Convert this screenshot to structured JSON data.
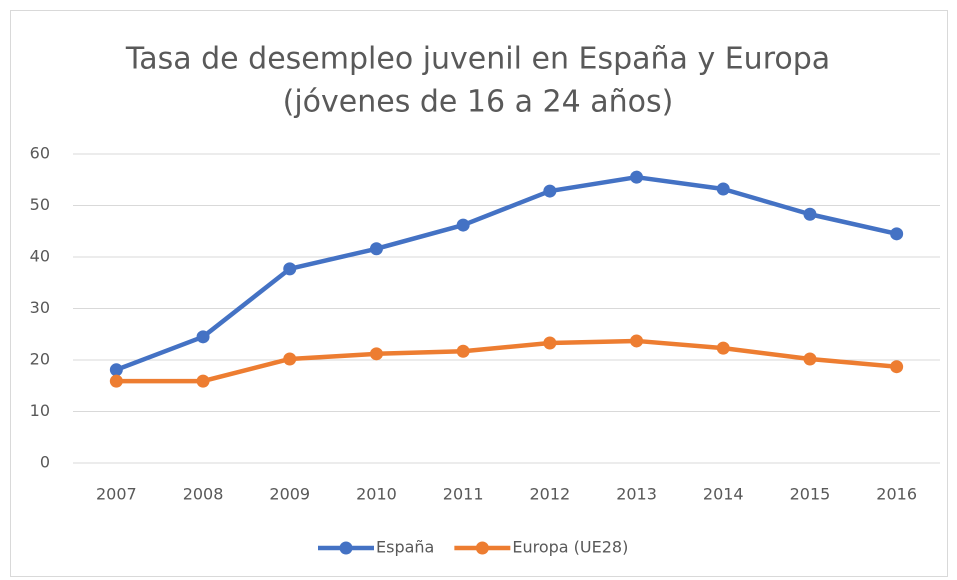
{
  "chart_data": {
    "type": "line",
    "title": [
      "Tasa de desempleo juvenil en España y Europa",
      "(jóvenes de 16 a 24 años)"
    ],
    "categories": [
      "2007",
      "2008",
      "2009",
      "2010",
      "2011",
      "2012",
      "2013",
      "2014",
      "2015",
      "2016"
    ],
    "series": [
      {
        "name": "España",
        "color": "#4472c4",
        "values": [
          18.1,
          24.5,
          37.7,
          41.6,
          46.2,
          52.8,
          55.5,
          53.2,
          48.3,
          44.5
        ]
      },
      {
        "name": "Europa (UE28)",
        "color": "#ed7d31",
        "values": [
          15.9,
          15.9,
          20.2,
          21.2,
          21.7,
          23.3,
          23.7,
          22.3,
          20.2,
          18.7
        ]
      }
    ],
    "ylim": [
      0,
      60
    ],
    "yticks": [
      0,
      10,
      20,
      30,
      40,
      50,
      60
    ],
    "grid": true,
    "legend": "bottom"
  }
}
